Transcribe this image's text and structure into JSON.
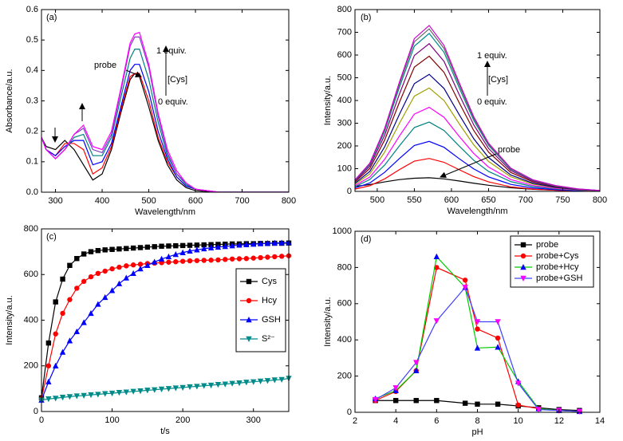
{
  "chart_data": [
    {
      "type": "line",
      "xlabel": "Wavelength/nm",
      "ylabel": "Absorbance/a.u.",
      "annotations": [
        "(a)",
        "probe",
        "1 equiv.",
        "[Cys]",
        "0 equiv."
      ],
      "xlim": [
        270,
        800
      ],
      "xticks": [
        300,
        400,
        500,
        600,
        700,
        800
      ],
      "ylim": [
        0,
        0.6
      ],
      "yticks": [
        {
          "value": 0,
          "label": "0.0"
        },
        0.1,
        0.2,
        0.3,
        0.4,
        0.5,
        0.6
      ],
      "x": [
        270,
        280,
        300,
        320,
        340,
        360,
        380,
        400,
        420,
        440,
        460,
        470,
        480,
        500,
        520,
        540,
        560,
        580,
        600,
        650,
        700,
        800
      ],
      "series": [
        {
          "color": "#000000",
          "values": [
            0.18,
            0.15,
            0.14,
            0.17,
            0.14,
            0.09,
            0.04,
            0.06,
            0.14,
            0.26,
            0.37,
            0.39,
            0.38,
            0.28,
            0.17,
            0.09,
            0.04,
            0.015,
            0.005,
            0,
            0,
            0
          ]
        },
        {
          "color": "#ff0000",
          "values": [
            0.18,
            0.14,
            0.12,
            0.16,
            0.16,
            0.14,
            0.06,
            0.08,
            0.15,
            0.27,
            0.38,
            0.39,
            0.39,
            0.3,
            0.18,
            0.1,
            0.05,
            0.02,
            0.01,
            0,
            0,
            0
          ]
        },
        {
          "color": "#0000ff",
          "values": [
            0.18,
            0.14,
            0.12,
            0.15,
            0.17,
            0.17,
            0.09,
            0.1,
            0.16,
            0.28,
            0.4,
            0.42,
            0.42,
            0.33,
            0.2,
            0.11,
            0.05,
            0.02,
            0.01,
            0,
            0,
            0
          ]
        },
        {
          "color": "#008080",
          "values": [
            0.18,
            0.14,
            0.11,
            0.14,
            0.18,
            0.19,
            0.12,
            0.12,
            0.18,
            0.31,
            0.44,
            0.47,
            0.47,
            0.37,
            0.23,
            0.12,
            0.06,
            0.025,
            0.01,
            0,
            0,
            0
          ]
        },
        {
          "color": "#8040c0",
          "values": [
            0.18,
            0.14,
            0.11,
            0.14,
            0.19,
            0.21,
            0.14,
            0.13,
            0.19,
            0.33,
            0.48,
            0.51,
            0.51,
            0.41,
            0.25,
            0.13,
            0.06,
            0.03,
            0.01,
            0,
            0,
            0
          ]
        },
        {
          "color": "#ff00ff",
          "values": [
            0.18,
            0.14,
            0.11,
            0.14,
            0.19,
            0.22,
            0.15,
            0.14,
            0.2,
            0.34,
            0.49,
            0.52,
            0.525,
            0.42,
            0.26,
            0.14,
            0.07,
            0.03,
            0.01,
            0,
            0,
            0
          ]
        }
      ]
    },
    {
      "type": "line",
      "xlabel": "Wavelength/nm",
      "ylabel": "Intensity/a.u.",
      "annotations": [
        "(b)",
        "probe",
        "1 equiv.",
        "[Cys]",
        "0 equiv."
      ],
      "xlim": [
        470,
        800
      ],
      "xticks": [
        500,
        550,
        600,
        650,
        700,
        750,
        800
      ],
      "ylim": [
        0,
        800
      ],
      "yticks": [
        0,
        100,
        200,
        300,
        400,
        500,
        600,
        700,
        800
      ],
      "x": [
        470,
        490,
        510,
        530,
        550,
        570,
        590,
        610,
        630,
        650,
        680,
        710,
        740,
        770,
        800
      ],
      "series": [
        {
          "color": "#000000",
          "values": [
            22,
            30,
            42,
            52,
            58,
            60,
            55,
            46,
            36,
            27,
            16,
            9,
            5,
            2,
            1
          ]
        },
        {
          "color": "#ff0000",
          "values": [
            10,
            25,
            55,
            96,
            133,
            145,
            128,
            96,
            65,
            42,
            20,
            10,
            5,
            2,
            1
          ]
        },
        {
          "color": "#0000ff",
          "values": [
            15,
            37,
            84,
            145,
            202,
            220,
            194,
            145,
            99,
            64,
            31,
            15,
            8,
            3,
            1
          ]
        },
        {
          "color": "#008080",
          "values": [
            21,
            52,
            116,
            201,
            281,
            305,
            268,
            201,
            137,
            88,
            43,
            21,
            11,
            5,
            2
          ]
        },
        {
          "color": "#ff00ff",
          "values": [
            26,
            63,
            141,
            244,
            340,
            370,
            326,
            244,
            167,
            107,
            52,
            26,
            13,
            6,
            2
          ]
        },
        {
          "color": "#a0a000",
          "values": [
            32,
            77,
            173,
            300,
            419,
            455,
            400,
            300,
            205,
            132,
            64,
            32,
            16,
            7,
            2
          ]
        },
        {
          "color": "#00008b",
          "values": [
            36,
            88,
            196,
            340,
            474,
            515,
            453,
            340,
            232,
            149,
            72,
            36,
            18,
            8,
            3
          ]
        },
        {
          "color": "#800000",
          "values": [
            42,
            101,
            226,
            393,
            547,
            595,
            524,
            393,
            268,
            173,
            83,
            42,
            21,
            9,
            3
          ]
        },
        {
          "color": "#800080",
          "values": [
            46,
            111,
            247,
            429,
            598,
            650,
            572,
            429,
            293,
            189,
            91,
            46,
            23,
            10,
            3
          ]
        },
        {
          "color": "#008b8b",
          "values": [
            49,
            118,
            264,
            459,
            639,
            695,
            612,
            459,
            313,
            202,
            97,
            49,
            24,
            10,
            3
          ]
        },
        {
          "color": "#666666",
          "values": [
            50,
            122,
            272,
            472,
            658,
            715,
            629,
            472,
            322,
            207,
            100,
            50,
            25,
            11,
            4
          ]
        },
        {
          "color": "#cc00cc",
          "values": [
            51,
            124,
            277,
            482,
            672,
            730,
            642,
            482,
            329,
            212,
            102,
            51,
            26,
            11,
            4
          ]
        }
      ]
    },
    {
      "type": "line",
      "xlabel": "t/s",
      "ylabel": "Intensity/a.u.",
      "legend": "right",
      "annotations": [
        "(c)"
      ],
      "xlim": [
        0,
        350
      ],
      "xticks": [
        0,
        100,
        200,
        300
      ],
      "ylim": [
        0,
        800
      ],
      "yticks": [
        0,
        200,
        400,
        600,
        800
      ],
      "x": [
        0,
        10,
        20,
        30,
        40,
        50,
        60,
        70,
        80,
        90,
        100,
        110,
        120,
        130,
        140,
        150,
        160,
        170,
        180,
        190,
        200,
        210,
        220,
        230,
        240,
        250,
        260,
        270,
        280,
        290,
        300,
        310,
        320,
        330,
        340,
        350
      ],
      "series": [
        {
          "name": "Cys",
          "color": "#000000",
          "marker": "square",
          "values": [
            60,
            300,
            480,
            580,
            640,
            670,
            690,
            700,
            705,
            708,
            710,
            712,
            714,
            716,
            718,
            720,
            722,
            724,
            725,
            726,
            727,
            728,
            729,
            730,
            731,
            732,
            733,
            734,
            734,
            735,
            735,
            736,
            736,
            737,
            737,
            738
          ]
        },
        {
          "name": "Hcy",
          "color": "#ff0000",
          "marker": "circle",
          "values": [
            55,
            200,
            340,
            430,
            490,
            540,
            570,
            590,
            605,
            615,
            625,
            632,
            638,
            642,
            645,
            648,
            650,
            652,
            654,
            656,
            658,
            660,
            661,
            662,
            663,
            664,
            666,
            668,
            669,
            670,
            672,
            674,
            676,
            678,
            680,
            682
          ]
        },
        {
          "name": "GSH",
          "color": "#0000ff",
          "marker": "triangle-up",
          "values": [
            50,
            130,
            200,
            260,
            310,
            350,
            390,
            430,
            470,
            500,
            530,
            560,
            585,
            605,
            625,
            640,
            655,
            668,
            678,
            688,
            696,
            703,
            708,
            713,
            717,
            720,
            723,
            726,
            729,
            731,
            733,
            735,
            737,
            738,
            739,
            740
          ]
        },
        {
          "name": "S²⁻",
          "color": "#008b8b",
          "marker": "triangle-down",
          "values": [
            50,
            55,
            58,
            62,
            65,
            68,
            70,
            73,
            75,
            78,
            80,
            83,
            85,
            88,
            90,
            93,
            95,
            98,
            100,
            103,
            105,
            108,
            110,
            113,
            115,
            118,
            120,
            123,
            125,
            128,
            130,
            133,
            135,
            138,
            140,
            145
          ]
        }
      ]
    },
    {
      "type": "line",
      "xlabel": "pH",
      "ylabel": "Intensity/a.u.",
      "legend": "upper right",
      "annotations": [
        "(d)"
      ],
      "xlim": [
        2,
        14
      ],
      "xticks": [
        2,
        4,
        6,
        8,
        10,
        12,
        14
      ],
      "ylim": [
        0,
        1000
      ],
      "yticks": [
        0,
        200,
        400,
        600,
        800,
        1000
      ],
      "x": [
        3,
        4,
        5,
        6,
        7.4,
        8,
        9,
        10,
        11,
        12,
        13
      ],
      "series": [
        {
          "name": "probe",
          "color": "#000000",
          "line_color": "#000000",
          "marker": "square",
          "values": [
            65,
            65,
            65,
            65,
            50,
            45,
            45,
            35,
            25,
            15,
            10
          ]
        },
        {
          "name": "probe+Cys",
          "color": "#ff0000",
          "line_color": "#ff0000",
          "marker": "circle",
          "values": [
            65,
            115,
            230,
            800,
            730,
            460,
            410,
            40,
            20,
            10,
            5
          ]
        },
        {
          "name": "probe+Hcy",
          "color": "#0000ff",
          "line_color": "#00cc00",
          "marker": "triangle-up",
          "values": [
            75,
            120,
            230,
            860,
            690,
            355,
            360,
            170,
            20,
            10,
            5
          ]
        },
        {
          "name": "probe+GSH",
          "color": "#ff00ff",
          "line_color": "#4040ff",
          "marker": "triangle-down",
          "values": [
            70,
            135,
            275,
            505,
            690,
            500,
            500,
            160,
            15,
            10,
            5
          ]
        }
      ]
    }
  ]
}
